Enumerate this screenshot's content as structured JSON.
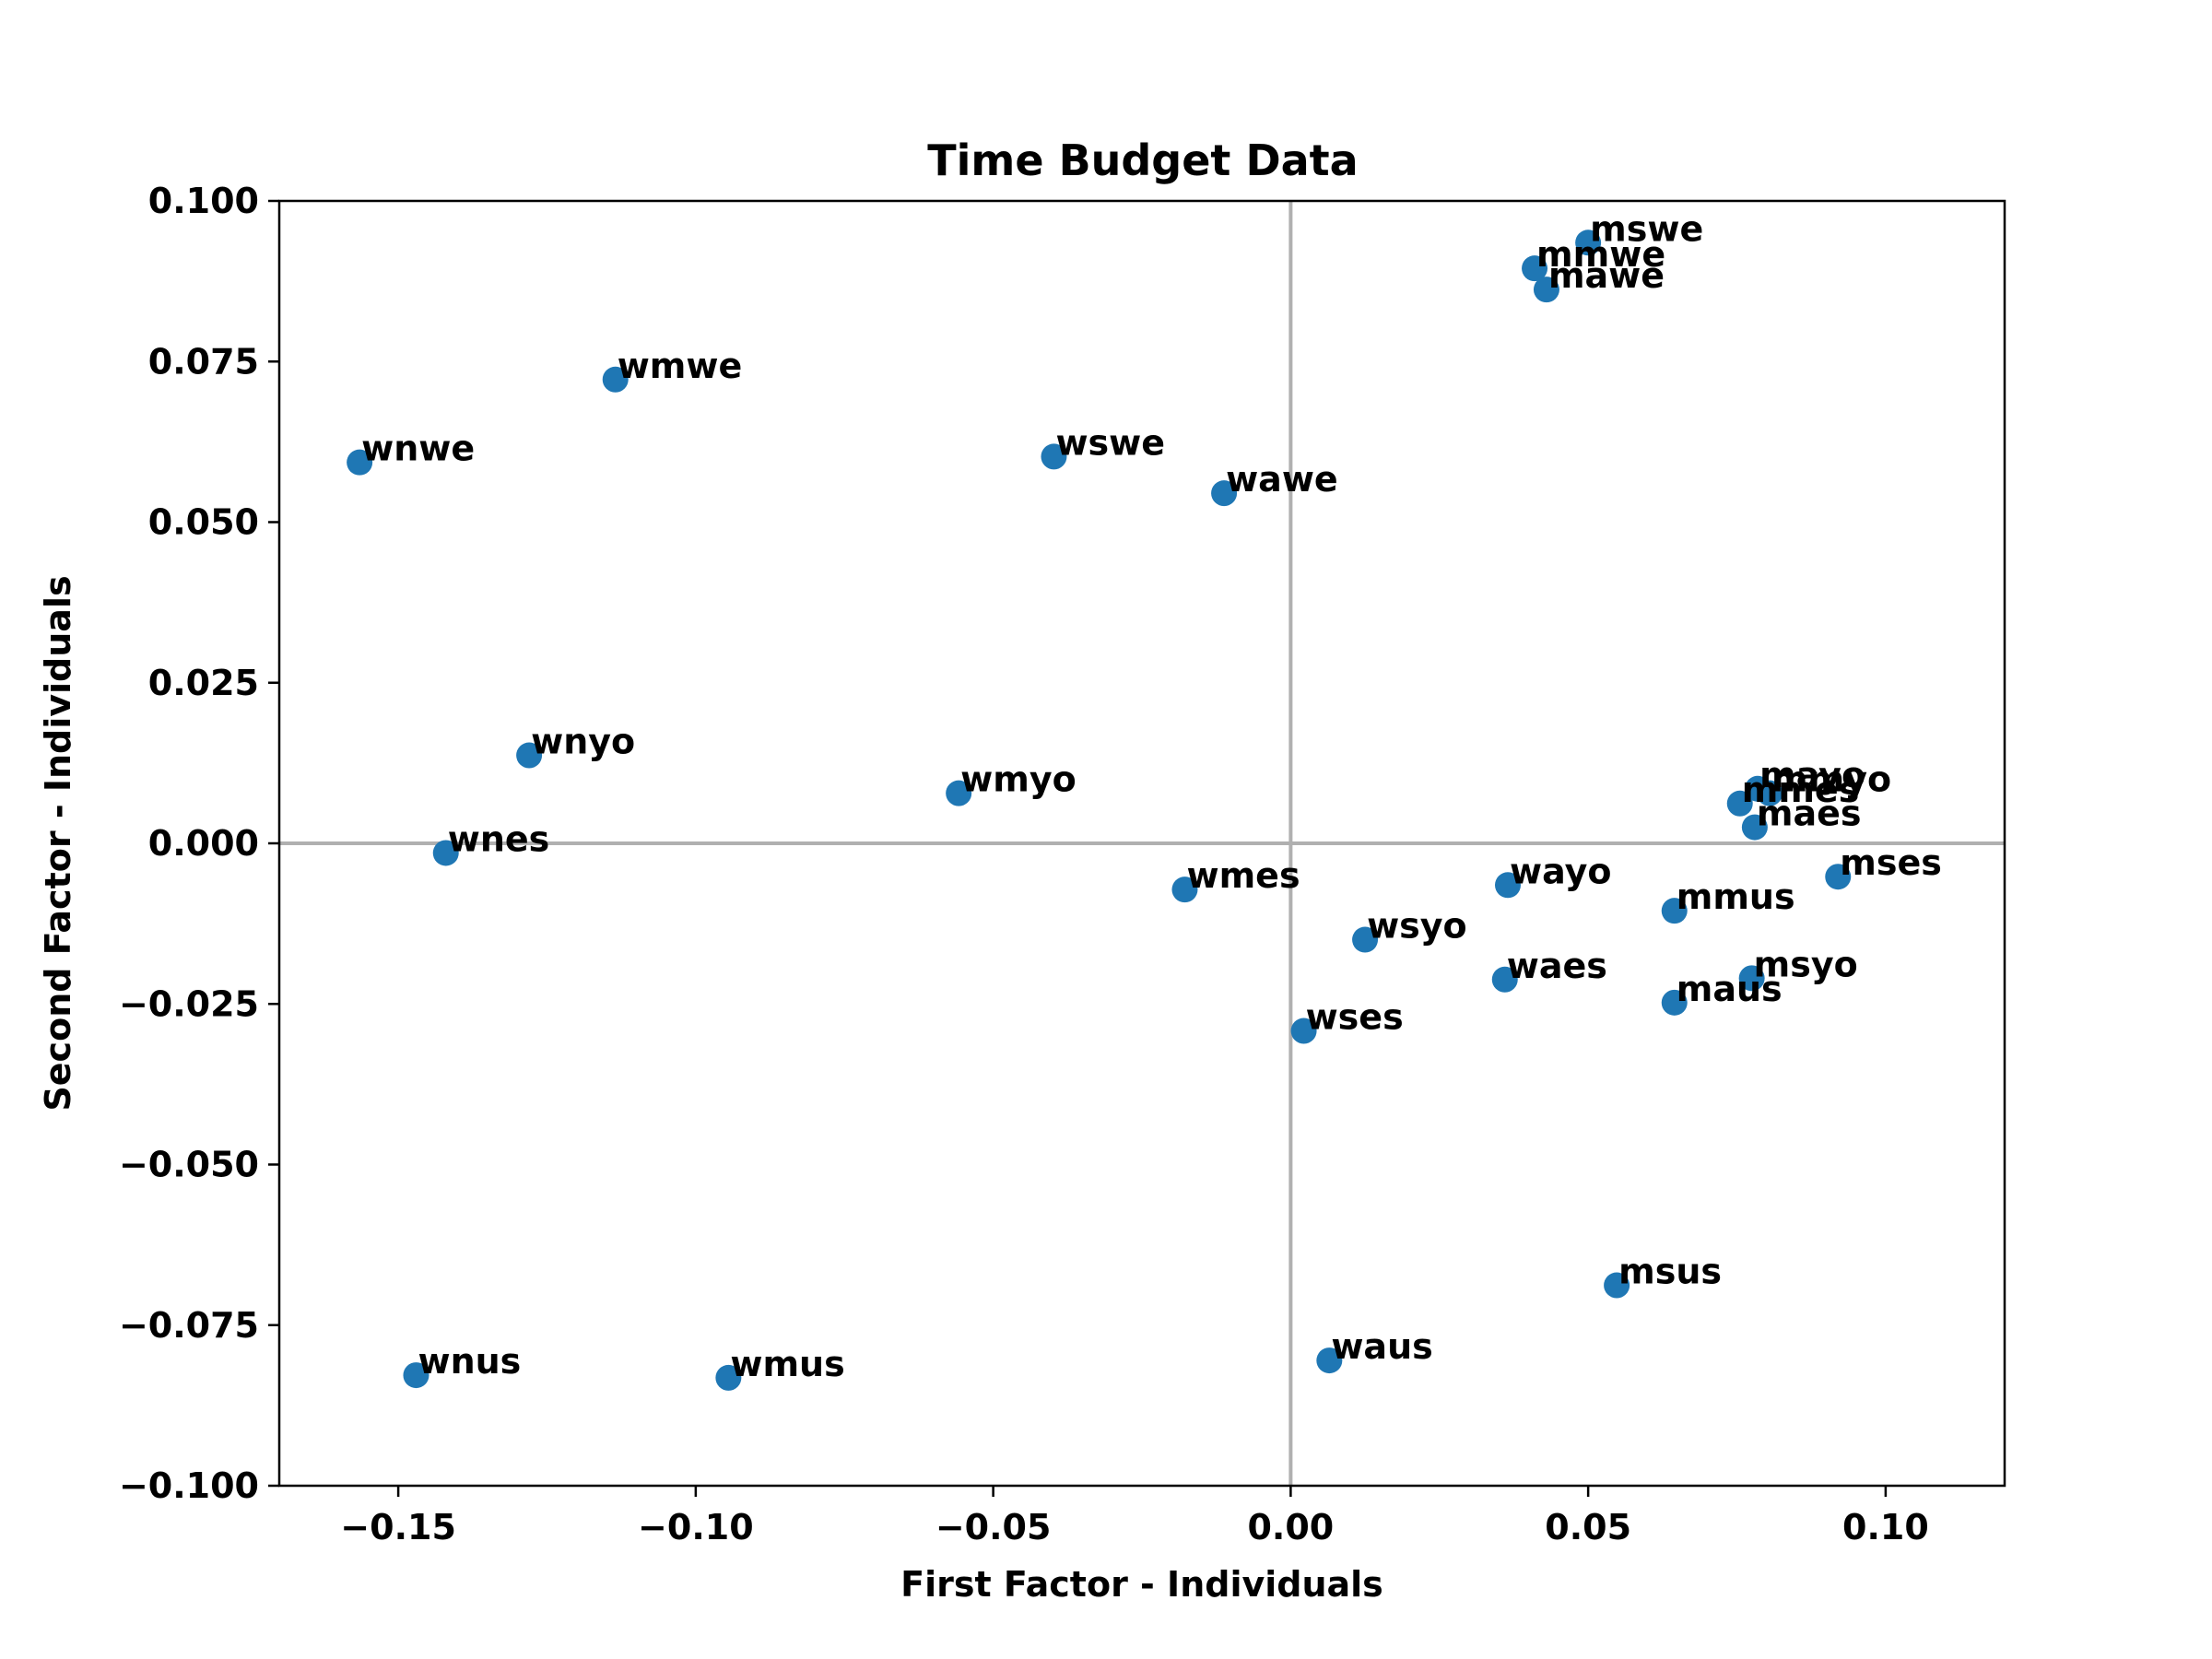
{
  "chart_data": {
    "type": "scatter",
    "title": "Time Budget Data",
    "xlabel": "First Factor - Individuals",
    "ylabel": "Second Factor - Individuals",
    "xlim": [
      -0.17,
      0.12
    ],
    "ylim": [
      -0.1,
      0.1
    ],
    "xticks": [
      -0.15,
      -0.1,
      -0.05,
      0.0,
      0.05,
      0.1
    ],
    "xtick_labels": [
      "−0.15",
      "−0.10",
      "−0.05",
      "0.00",
      "0.05",
      "0.10"
    ],
    "yticks": [
      -0.1,
      -0.075,
      -0.05,
      -0.025,
      0.0,
      0.025,
      0.05,
      0.075,
      0.1
    ],
    "ytick_labels": [
      "−0.100",
      "−0.075",
      "−0.050",
      "−0.025",
      "0.000",
      "0.025",
      "0.050",
      "0.075",
      "0.100"
    ],
    "reference_lines": {
      "x0": true,
      "y0": true,
      "color": "#b0b0b0"
    },
    "grid": false,
    "marker_color": "#1f77b4",
    "points": [
      {
        "label": "mswe",
        "x": 0.05,
        "y": 0.0935
      },
      {
        "label": "mmwe",
        "x": 0.041,
        "y": 0.0895
      },
      {
        "label": "mawe",
        "x": 0.043,
        "y": 0.0862
      },
      {
        "label": "wmwe",
        "x": -0.1135,
        "y": 0.0722
      },
      {
        "label": "wnwe",
        "x": -0.1565,
        "y": 0.0593
      },
      {
        "label": "wswe",
        "x": -0.0398,
        "y": 0.0602
      },
      {
        "label": "wawe",
        "x": -0.0112,
        "y": 0.0545
      },
      {
        "label": "wnyo",
        "x": -0.128,
        "y": 0.0137
      },
      {
        "label": "wmyo",
        "x": -0.0558,
        "y": 0.0078
      },
      {
        "label": "mayo",
        "x": 0.0785,
        "y": 0.0085
      },
      {
        "label": "mmyo",
        "x": 0.0805,
        "y": 0.0078
      },
      {
        "label": "mmes",
        "x": 0.0755,
        "y": 0.0062
      },
      {
        "label": "maes",
        "x": 0.078,
        "y": 0.0025
      },
      {
        "label": "wnes",
        "x": -0.142,
        "y": -0.0015
      },
      {
        "label": "mses",
        "x": 0.092,
        "y": -0.0052
      },
      {
        "label": "wmes",
        "x": -0.0178,
        "y": -0.0072
      },
      {
        "label": "wayo",
        "x": 0.0365,
        "y": -0.0065
      },
      {
        "label": "mmus",
        "x": 0.0645,
        "y": -0.0105
      },
      {
        "label": "wsyo",
        "x": 0.0125,
        "y": -0.015
      },
      {
        "label": "waes",
        "x": 0.036,
        "y": -0.0212
      },
      {
        "label": "msyo",
        "x": 0.0775,
        "y": -0.021
      },
      {
        "label": "maus",
        "x": 0.0645,
        "y": -0.0248
      },
      {
        "label": "wses",
        "x": 0.0022,
        "y": -0.0292
      },
      {
        "label": "msus",
        "x": 0.0548,
        "y": -0.0688
      },
      {
        "label": "waus",
        "x": 0.0065,
        "y": -0.0805
      },
      {
        "label": "wnus",
        "x": -0.147,
        "y": -0.0828
      },
      {
        "label": "wmus",
        "x": -0.0945,
        "y": -0.0832
      }
    ]
  }
}
